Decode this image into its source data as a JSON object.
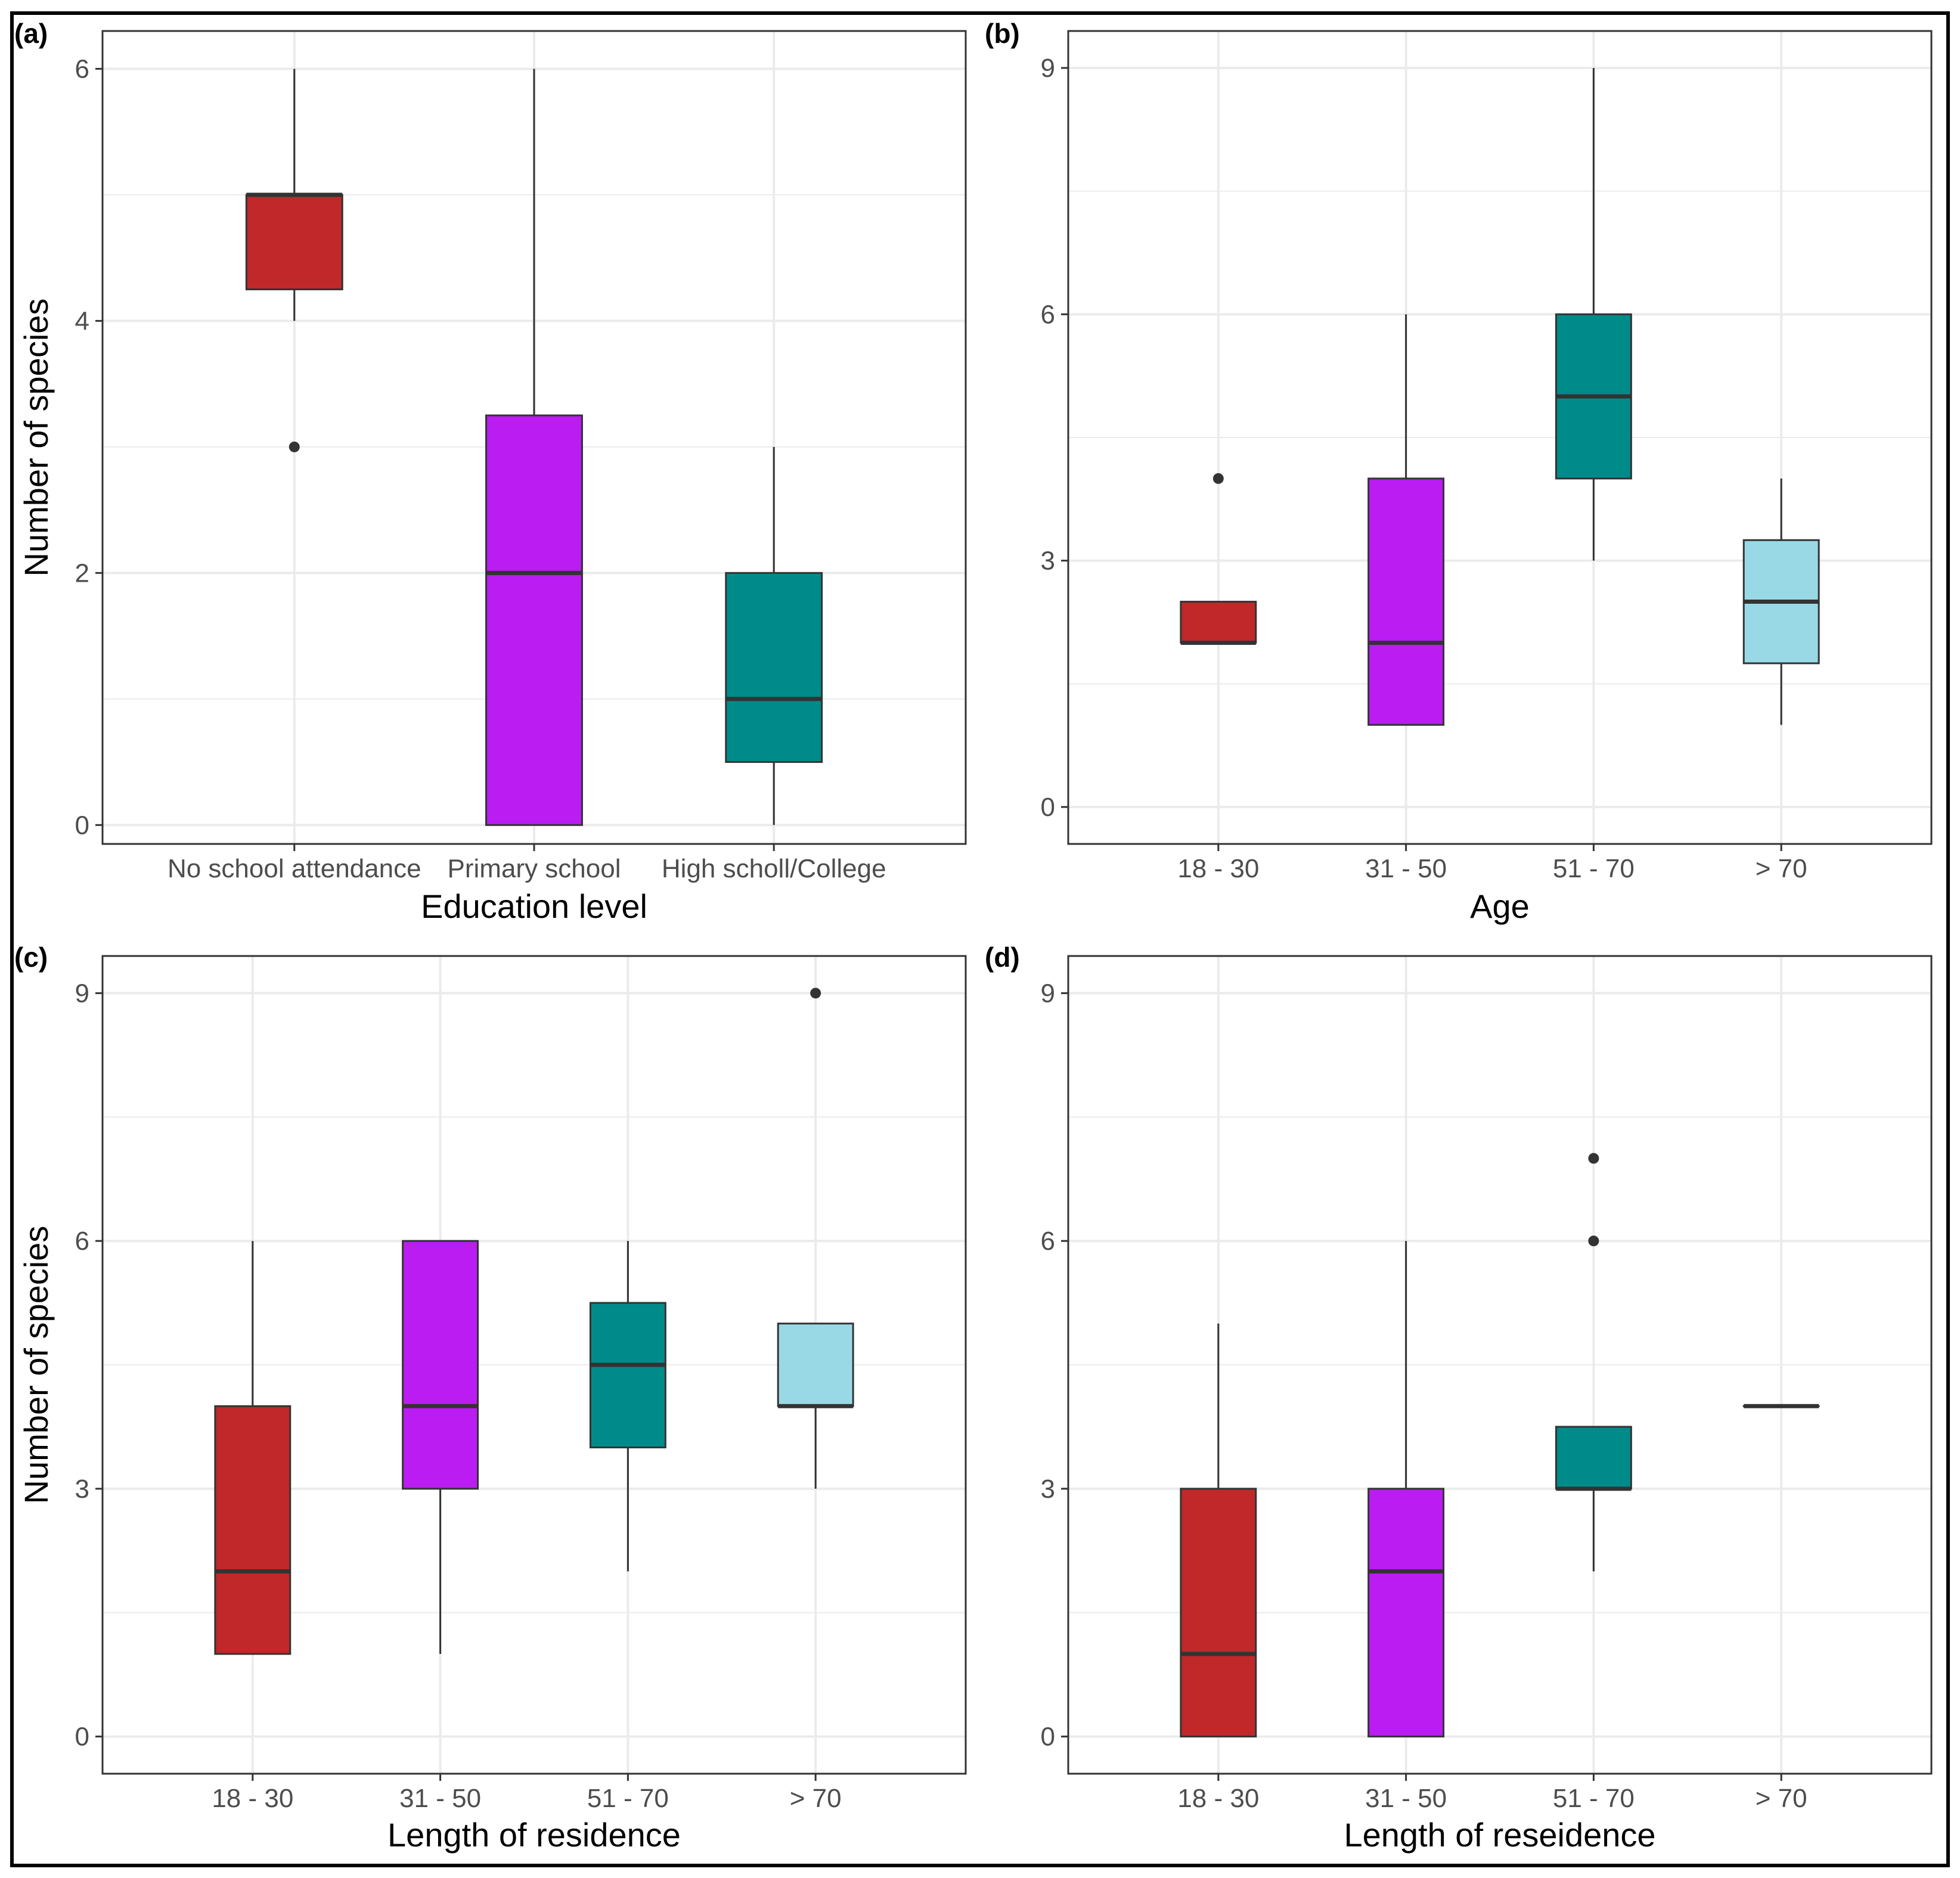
{
  "figure": {
    "outer_border_color": "#000000"
  },
  "colors": {
    "red": "#c0282a",
    "purple": "#ba1cf2",
    "teal": "#008b8b",
    "lightblue": "#99d9e6",
    "line": "#333333",
    "grid": "#ebebeb",
    "panel_border": "#333333"
  },
  "chart_data": [
    {
      "type": "box",
      "panel_label": "(a)",
      "xlabel": "Education level",
      "ylabel": "Number of species",
      "ylim": [
        -0.15,
        6.3
      ],
      "yticks": [
        0,
        2,
        4,
        6
      ],
      "categories": [
        "No school attendance",
        "Primary school",
        "High scholl/College"
      ],
      "boxes": [
        {
          "category": "No school attendance",
          "color": "red",
          "min": 4,
          "q1": 4.25,
          "median": 5,
          "q3": 5,
          "max": 6,
          "outliers": [
            3
          ]
        },
        {
          "category": "Primary school",
          "color": "purple",
          "min": 0,
          "q1": 0,
          "median": 2,
          "q3": 3.25,
          "max": 6,
          "outliers": []
        },
        {
          "category": "High scholl/College",
          "color": "teal",
          "min": 0,
          "q1": 0.5,
          "median": 1,
          "q3": 2,
          "max": 3,
          "outliers": []
        }
      ]
    },
    {
      "type": "box",
      "panel_label": "(b)",
      "xlabel": "Age",
      "ylabel": "",
      "ylim": [
        -0.45,
        9.45
      ],
      "yticks": [
        0,
        3,
        6,
        9
      ],
      "categories": [
        "18 - 30",
        "31 - 50",
        "51 - 70",
        "> 70"
      ],
      "boxes": [
        {
          "category": "18 - 30",
          "color": "red",
          "min": 2,
          "q1": 2,
          "median": 2,
          "q3": 2.5,
          "max": 2.5,
          "outliers": [
            4
          ]
        },
        {
          "category": "31 - 50",
          "color": "purple",
          "min": 1,
          "q1": 1,
          "median": 2,
          "q3": 4,
          "max": 6,
          "outliers": []
        },
        {
          "category": "51 - 70",
          "color": "teal",
          "min": 3,
          "q1": 4,
          "median": 5,
          "q3": 6,
          "max": 9,
          "outliers": []
        },
        {
          "category": "> 70",
          "color": "lightblue",
          "min": 1,
          "q1": 1.75,
          "median": 2.5,
          "q3": 3.25,
          "max": 4,
          "outliers": []
        }
      ]
    },
    {
      "type": "box",
      "panel_label": "(c)",
      "xlabel": "Length of residence",
      "ylabel": "Number of species",
      "ylim": [
        -0.45,
        9.45
      ],
      "yticks": [
        0,
        3,
        6,
        9
      ],
      "categories": [
        "18 - 30",
        "31 - 50",
        "51 - 70",
        "> 70"
      ],
      "boxes": [
        {
          "category": "18 - 30",
          "color": "red",
          "min": 1,
          "q1": 1,
          "median": 2,
          "q3": 4,
          "max": 6,
          "outliers": []
        },
        {
          "category": "31 - 50",
          "color": "purple",
          "min": 1,
          "q1": 3,
          "median": 4,
          "q3": 6,
          "max": 6,
          "outliers": []
        },
        {
          "category": "51 - 70",
          "color": "teal",
          "min": 2,
          "q1": 3.5,
          "median": 4.5,
          "q3": 5.25,
          "max": 6,
          "outliers": []
        },
        {
          "category": "> 70",
          "color": "lightblue",
          "min": 3,
          "q1": 4,
          "median": 4,
          "q3": 5,
          "max": 5,
          "outliers": [
            9
          ]
        }
      ]
    },
    {
      "type": "box",
      "panel_label": "(d)",
      "xlabel": "Length of reseidence",
      "ylabel": "",
      "ylim": [
        -0.45,
        9.45
      ],
      "yticks": [
        0,
        3,
        6,
        9
      ],
      "categories": [
        "18 - 30",
        "31 - 50",
        "51 - 70",
        "> 70"
      ],
      "boxes": [
        {
          "category": "18 - 30",
          "color": "red",
          "min": 0,
          "q1": 0,
          "median": 1,
          "q3": 3,
          "max": 5,
          "outliers": []
        },
        {
          "category": "31 - 50",
          "color": "purple",
          "min": 0,
          "q1": 0,
          "median": 2,
          "q3": 3,
          "max": 6,
          "outliers": []
        },
        {
          "category": "51 - 70",
          "color": "teal",
          "min": 2,
          "q1": 3,
          "median": 3,
          "q3": 3.75,
          "max": 3.75,
          "outliers": [
            6,
            7
          ]
        },
        {
          "category": "> 70",
          "color": "lightblue",
          "min": 4,
          "q1": 4,
          "median": 4,
          "q3": 4,
          "max": 4,
          "outliers": []
        }
      ]
    }
  ]
}
